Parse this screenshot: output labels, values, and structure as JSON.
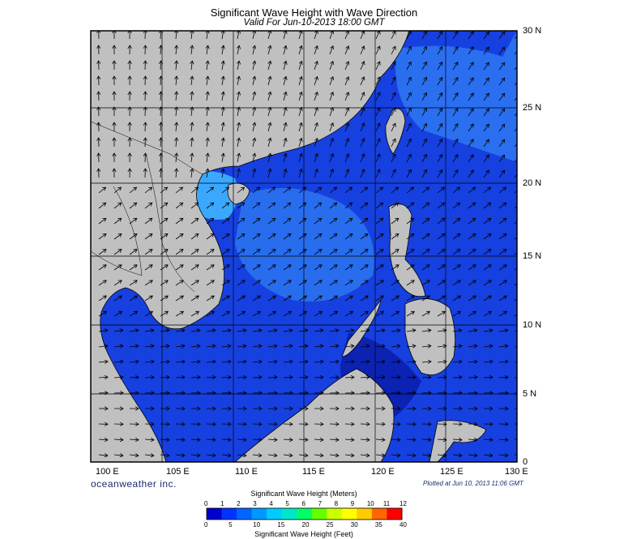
{
  "title": "Significant Wave Height with Wave Direction",
  "subtitle": "Valid For Jun-10-2013 18:00 GMT",
  "lat_labels": [
    "30 N",
    "25 N",
    "20 N",
    "15 N",
    "10 N",
    "5 N",
    "0"
  ],
  "lon_labels": [
    "100 E",
    "105 E",
    "110 E",
    "115 E",
    "120 E",
    "125 E",
    "130 E"
  ],
  "brand": "oceanweather inc.",
  "plotted": "Plotted at Jun 10, 2013 11:06 GMT",
  "colorbar": {
    "title_meters": "Significant Wave Height (Meters)",
    "title_feet": "Significant Wave Height (Feet)",
    "meters_ticks": [
      "0",
      "1",
      "2",
      "3",
      "4",
      "5",
      "6",
      "7",
      "8",
      "9",
      "10",
      "11",
      "12"
    ],
    "feet_ticks": [
      "0",
      "5",
      "10",
      "15",
      "20",
      "25",
      "30",
      "35",
      "40"
    ],
    "colors": [
      "#0000cc",
      "#0033ff",
      "#0066ff",
      "#0099ff",
      "#00ccff",
      "#00e5cc",
      "#00ff66",
      "#66ff00",
      "#ccff00",
      "#ffff00",
      "#ffcc00",
      "#ff6600",
      "#ff0000"
    ]
  },
  "colors": {
    "land": "#c0c0c0",
    "sea_dark": "#0a1aa8",
    "sea_mid": "#1740e0",
    "sea_light": "#2a72f0",
    "sea_cyan": "#3aa8ff"
  }
}
